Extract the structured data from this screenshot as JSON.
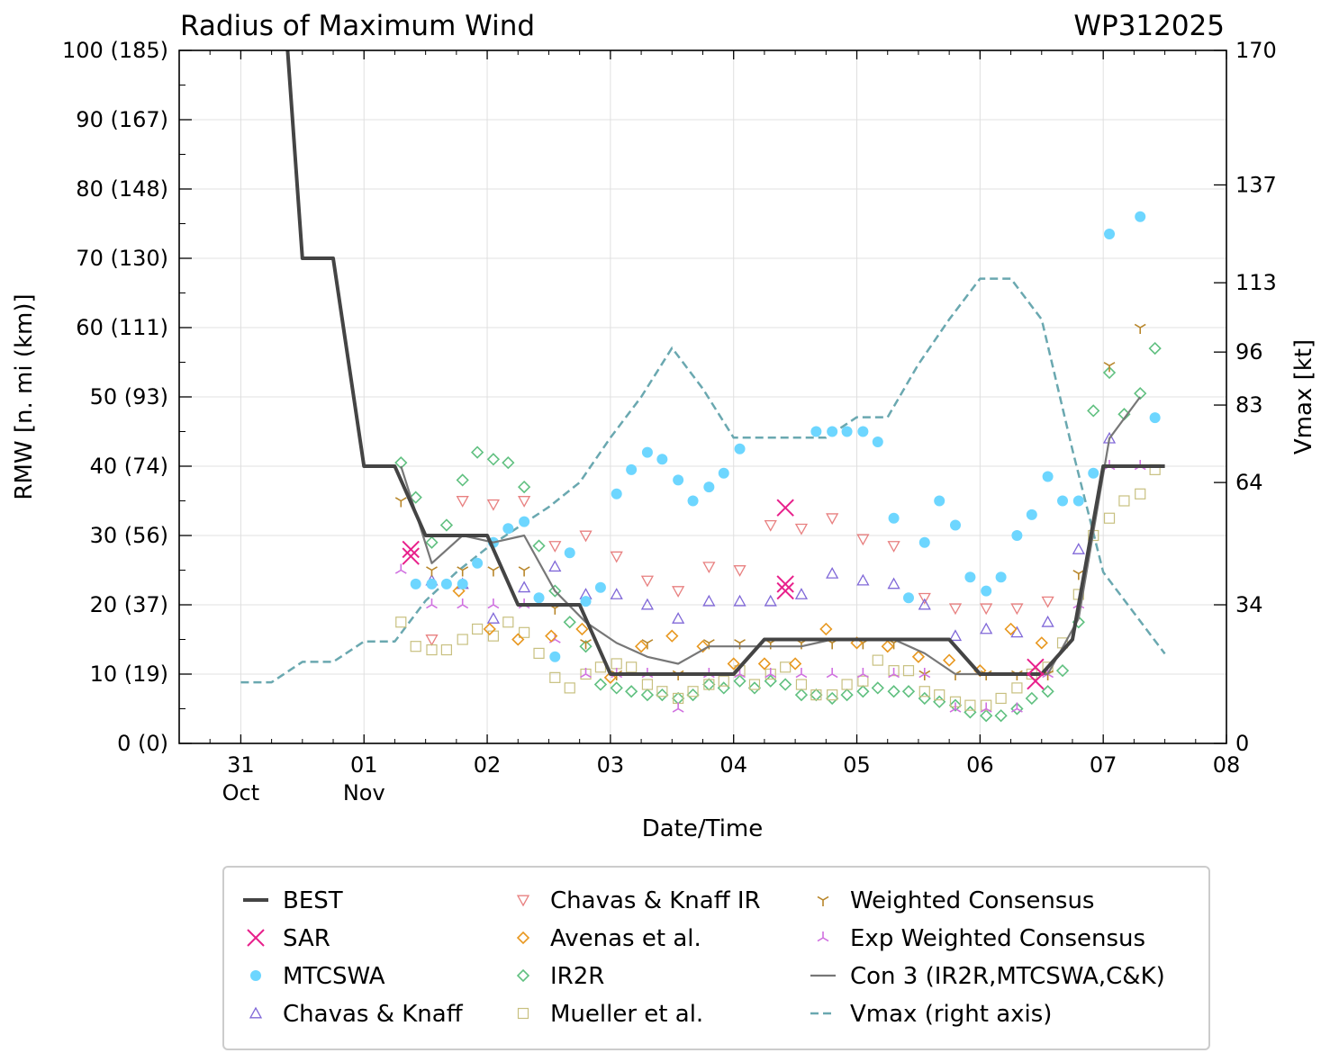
{
  "chart_data": {
    "type": "line",
    "title": "Radius of Maximum Wind",
    "storm_id": "WP312025",
    "xlabel": "Date/Time",
    "ylabel_left": "RMW [n. mi (km)]",
    "ylabel_right": "Vmax [kt]",
    "x_units": "days since 31 Oct 00Z",
    "xlim": [
      -0.5,
      8.0
    ],
    "ylim_left": [
      0,
      100
    ],
    "ylim_right": [
      0,
      170
    ],
    "x_ticks": [
      {
        "x": 0,
        "label": "31",
        "sub": "Oct"
      },
      {
        "x": 1,
        "label": "01",
        "sub": "Nov"
      },
      {
        "x": 2,
        "label": "02",
        "sub": ""
      },
      {
        "x": 3,
        "label": "03",
        "sub": ""
      },
      {
        "x": 4,
        "label": "04",
        "sub": ""
      },
      {
        "x": 5,
        "label": "05",
        "sub": ""
      },
      {
        "x": 6,
        "label": "06",
        "sub": ""
      },
      {
        "x": 7,
        "label": "07",
        "sub": ""
      },
      {
        "x": 8,
        "label": "08",
        "sub": ""
      }
    ],
    "y_ticks_left": [
      {
        "v": 0,
        "label": "0 (0)"
      },
      {
        "v": 10,
        "label": "10 (19)"
      },
      {
        "v": 20,
        "label": "20 (37)"
      },
      {
        "v": 30,
        "label": "30 (56)"
      },
      {
        "v": 40,
        "label": "40 (74)"
      },
      {
        "v": 50,
        "label": "50 (93)"
      },
      {
        "v": 60,
        "label": "60 (111)"
      },
      {
        "v": 70,
        "label": "70 (130)"
      },
      {
        "v": 80,
        "label": "80 (148)"
      },
      {
        "v": 90,
        "label": "90 (167)"
      },
      {
        "v": 100,
        "label": "100 (185)"
      }
    ],
    "y_ticks_right": [
      0,
      34,
      64,
      83,
      96,
      113,
      137,
      170
    ],
    "series": [
      {
        "name": "BEST",
        "kind": "line",
        "color": "#444444",
        "x": [
          0.38,
          0.5,
          0.75,
          1.0,
          1.25,
          1.5,
          1.75,
          2.0,
          2.25,
          2.5,
          2.75,
          3.0,
          3.25,
          3.5,
          3.75,
          4.0,
          4.25,
          4.5,
          4.75,
          5.0,
          5.25,
          5.5,
          5.75,
          6.0,
          6.25,
          6.5,
          6.75,
          7.0,
          7.25,
          7.5
        ],
        "y": [
          100,
          70,
          70,
          40,
          40,
          30,
          30,
          30,
          20,
          20,
          20,
          10,
          10,
          10,
          10,
          10,
          15,
          15,
          15,
          15,
          15,
          15,
          15,
          10,
          10,
          10,
          15,
          40,
          40,
          40
        ]
      },
      {
        "name": "SAR",
        "kind": "marker",
        "marker": "x",
        "color": "#e8208b",
        "x": [
          1.38,
          1.38,
          4.42,
          4.42,
          4.42,
          6.45,
          6.45
        ],
        "y": [
          28,
          27,
          34,
          23,
          22,
          11,
          9
        ]
      },
      {
        "name": "MTCSWA",
        "kind": "marker",
        "marker": "circle",
        "color": "#6dd6ff",
        "x": [
          1.42,
          1.55,
          1.67,
          1.8,
          1.92,
          2.05,
          2.17,
          2.3,
          2.42,
          2.55,
          2.67,
          2.8,
          2.92,
          3.05,
          3.17,
          3.3,
          3.42,
          3.55,
          3.67,
          3.8,
          3.92,
          4.05,
          4.67,
          4.8,
          4.92,
          5.05,
          5.17,
          5.3,
          5.42,
          5.55,
          5.67,
          5.8,
          5.92,
          6.05,
          6.17,
          6.3,
          6.42,
          6.55,
          6.67,
          6.8,
          6.92,
          7.05,
          7.3,
          7.42
        ],
        "y": [
          23,
          23,
          23,
          23,
          26,
          29,
          31,
          32,
          21,
          12.5,
          27.5,
          20.5,
          22.5,
          36,
          39.5,
          42,
          41,
          38,
          35,
          37,
          39,
          42.5,
          45,
          45,
          45,
          45,
          43.5,
          32.5,
          21,
          29,
          35,
          31.5,
          24,
          22,
          24,
          30,
          33,
          38.5,
          35,
          35,
          39,
          73.5,
          76,
          47
        ]
      },
      {
        "name": "Chavas & Knaff",
        "kind": "marker",
        "marker": "triangle-up",
        "color": "#8068d8",
        "x": [
          1.55,
          1.8,
          2.05,
          2.3,
          2.55,
          2.8,
          3.05,
          3.3,
          3.55,
          3.8,
          4.05,
          4.3,
          4.55,
          4.8,
          5.05,
          5.3,
          5.55,
          5.8,
          6.05,
          6.3,
          6.55,
          6.8,
          7.05
        ],
        "y": [
          23.5,
          23,
          18,
          22.5,
          25.5,
          21.5,
          21.5,
          20,
          18,
          20.5,
          20.5,
          20.5,
          21.5,
          24.5,
          23.5,
          23,
          20,
          15.5,
          16.5,
          16,
          17.5,
          28,
          44
        ]
      },
      {
        "name": "Chavas & Knaff IR",
        "kind": "marker",
        "marker": "triangle-down",
        "color": "#e88080",
        "x": [
          1.55,
          1.8,
          2.05,
          2.3,
          2.55,
          2.8,
          3.05,
          3.3,
          3.55,
          3.8,
          4.05,
          4.3,
          4.55,
          4.8,
          5.05,
          5.3,
          5.55,
          5.8,
          6.05,
          6.3,
          6.55
        ],
        "y": [
          15,
          35,
          34.5,
          35,
          28.5,
          30,
          27,
          23.5,
          22,
          25.5,
          25,
          31.5,
          31,
          32.5,
          29.5,
          28.5,
          21,
          19.5,
          19.5,
          19.5,
          20.5
        ]
      },
      {
        "name": "Avenas et al.",
        "kind": "marker",
        "marker": "diamond",
        "color": "#e89820",
        "x": [
          1.77,
          2.02,
          2.25,
          2.52,
          2.77,
          3.0,
          3.25,
          3.5,
          3.75,
          4.0,
          4.25,
          4.5,
          4.75,
          5.0,
          5.25,
          5.5,
          5.75,
          6.0,
          6.25,
          6.5
        ],
        "y": [
          22,
          16.5,
          15,
          15.5,
          16.5,
          9.5,
          14,
          15.5,
          14,
          11.5,
          11.5,
          11.5,
          16.5,
          14.5,
          14,
          12.5,
          12,
          10.5,
          16.5,
          14.5
        ]
      },
      {
        "name": "IR2R",
        "kind": "marker",
        "marker": "diamond",
        "color": "#60c080",
        "x": [
          1.3,
          1.42,
          1.55,
          1.67,
          1.8,
          1.92,
          2.05,
          2.17,
          2.3,
          2.42,
          2.55,
          2.67,
          2.8,
          2.92,
          3.05,
          3.17,
          3.3,
          3.42,
          3.55,
          3.67,
          3.8,
          3.92,
          4.05,
          4.17,
          4.3,
          4.42,
          4.55,
          4.67,
          4.8,
          4.92,
          5.05,
          5.17,
          5.3,
          5.42,
          5.55,
          5.67,
          5.8,
          5.92,
          6.05,
          6.17,
          6.3,
          6.42,
          6.55,
          6.67,
          6.8,
          6.92,
          7.05,
          7.17,
          7.3,
          7.42
        ],
        "y": [
          40.5,
          35.5,
          29,
          31.5,
          38,
          42,
          41,
          40.5,
          37,
          28.5,
          22,
          17.5,
          14,
          8.5,
          8,
          7.5,
          7,
          7,
          6.5,
          7,
          8.5,
          8,
          9,
          8,
          9,
          8.5,
          7,
          7,
          6.5,
          7,
          7.5,
          8,
          7.5,
          7.5,
          6.5,
          6,
          5.5,
          4.5,
          4,
          4,
          5,
          6.5,
          7.5,
          10.5,
          17.5,
          48,
          53.5,
          47.5,
          50.5,
          57
        ]
      },
      {
        "name": "Mueller et al.",
        "kind": "marker",
        "marker": "square",
        "color": "#c8c080",
        "x": [
          1.3,
          1.42,
          1.55,
          1.67,
          1.8,
          1.92,
          2.05,
          2.17,
          2.3,
          2.42,
          2.55,
          2.67,
          2.8,
          2.92,
          3.05,
          3.17,
          3.3,
          3.42,
          3.55,
          3.67,
          3.8,
          3.92,
          4.05,
          4.17,
          4.3,
          4.42,
          4.55,
          4.67,
          4.8,
          4.92,
          5.05,
          5.17,
          5.3,
          5.42,
          5.55,
          5.67,
          5.8,
          5.92,
          6.05,
          6.17,
          6.3,
          6.42,
          6.55,
          6.67,
          6.8,
          6.92,
          7.05,
          7.17,
          7.3,
          7.42
        ],
        "y": [
          17.5,
          14,
          13.5,
          13.5,
          15,
          16.5,
          15.5,
          17.5,
          16,
          13,
          9.5,
          8,
          10,
          11,
          11.5,
          11,
          8.5,
          7.5,
          6.5,
          7.5,
          8.5,
          9,
          10.5,
          8.5,
          10,
          11,
          8.5,
          7,
          7,
          8.5,
          9,
          12,
          10.5,
          10.5,
          7.5,
          7,
          6,
          5.5,
          5.5,
          6.5,
          8,
          10,
          11,
          14.5,
          21.5,
          30,
          32.5,
          35,
          36,
          39.5
        ]
      },
      {
        "name": "Weighted Consensus",
        "kind": "marker",
        "marker": "tri-down",
        "color": "#b8862a",
        "x": [
          1.3,
          1.55,
          1.8,
          2.05,
          2.3,
          2.55,
          2.8,
          3.05,
          3.3,
          3.55,
          3.8,
          4.05,
          4.3,
          4.55,
          4.8,
          5.05,
          5.3,
          5.55,
          5.8,
          6.05,
          6.3,
          6.55,
          6.8,
          7.05,
          7.3
        ],
        "y": [
          35,
          25,
          25,
          25,
          25,
          19.5,
          14.5,
          10,
          14.5,
          10,
          14.5,
          14.5,
          14.5,
          14.5,
          14.5,
          14.5,
          14.5,
          10,
          10,
          10,
          10,
          10,
          24.5,
          54.5,
          60
        ]
      },
      {
        "name": "Exp Weighted Consensus",
        "kind": "marker",
        "marker": "tri-up",
        "color": "#d070e0",
        "x": [
          1.3,
          1.55,
          1.8,
          2.05,
          2.3,
          2.55,
          2.8,
          3.05,
          3.3,
          3.55,
          3.8,
          4.05,
          4.3,
          4.55,
          4.8,
          5.05,
          5.3,
          5.55,
          5.8,
          6.05,
          6.3,
          6.55,
          6.8,
          7.05,
          7.3
        ],
        "y": [
          25,
          20,
          20,
          20,
          20,
          15,
          10,
          10,
          10,
          5,
          10,
          10,
          10,
          10,
          10,
          10,
          10,
          10,
          5,
          5,
          5,
          10,
          20,
          40,
          40
        ]
      },
      {
        "name": "Con 3 (IR2R,MTCSWA,C&K)",
        "kind": "line",
        "color": "#777777",
        "x": [
          1.3,
          1.55,
          1.8,
          2.05,
          2.3,
          2.55,
          2.8,
          3.05,
          3.3,
          3.55,
          3.8,
          4.05,
          4.3,
          4.55,
          4.8,
          5.05,
          5.3,
          5.55,
          5.8,
          6.05,
          6.3,
          6.55,
          6.8,
          7.05,
          7.3
        ],
        "y": [
          40,
          26,
          30,
          29,
          30,
          22,
          17.5,
          14.5,
          12.5,
          11.5,
          14,
          14,
          14,
          14,
          15,
          15,
          15,
          13,
          10,
          10,
          10,
          10,
          18,
          44,
          50
        ]
      },
      {
        "name": "Vmax (right axis)",
        "kind": "dashed",
        "color": "#6aa8b0",
        "axis": "right",
        "x": [
          0.0,
          0.25,
          0.5,
          0.75,
          1.0,
          1.25,
          1.5,
          1.75,
          2.0,
          2.25,
          2.5,
          2.75,
          3.0,
          3.25,
          3.5,
          3.75,
          4.0,
          4.25,
          4.5,
          4.75,
          5.0,
          5.25,
          5.5,
          5.75,
          6.0,
          6.25,
          6.5,
          6.75,
          7.0,
          7.25,
          7.5
        ],
        "y": [
          15,
          15,
          20,
          20,
          25,
          25,
          35,
          42,
          48,
          53,
          58,
          64,
          75,
          85,
          97,
          87,
          75,
          75,
          75,
          75,
          80,
          80,
          93,
          104,
          114,
          114,
          104,
          72,
          42,
          32,
          22
        ]
      }
    ]
  }
}
